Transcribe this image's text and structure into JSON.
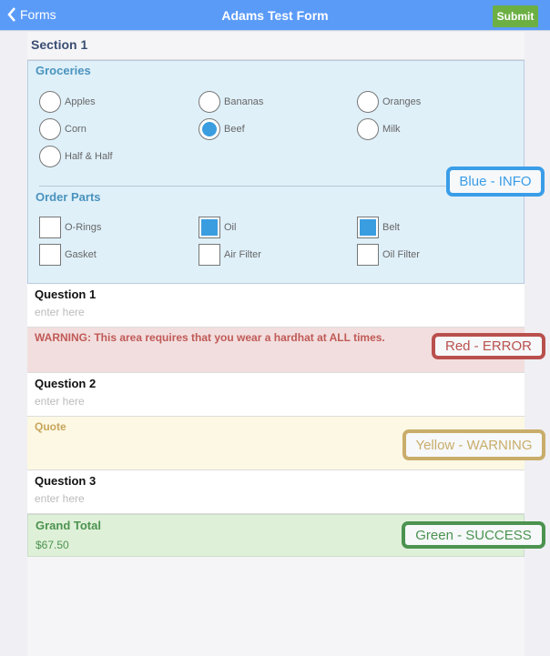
{
  "header": {
    "back_label": "Forms",
    "title": "Adams Test Form",
    "submit_label": "Submit"
  },
  "section": {
    "title": "Section 1"
  },
  "groceries": {
    "label": "Groceries",
    "options": [
      {
        "label": "Apples",
        "selected": false
      },
      {
        "label": "Bananas",
        "selected": false
      },
      {
        "label": "Oranges",
        "selected": false
      },
      {
        "label": "Corn",
        "selected": false
      },
      {
        "label": "Beef",
        "selected": true
      },
      {
        "label": "Milk",
        "selected": false
      },
      {
        "label": "Half & Half",
        "selected": false
      }
    ]
  },
  "parts": {
    "label": "Order Parts",
    "options": [
      {
        "label": "O-Rings",
        "checked": false
      },
      {
        "label": "Oil",
        "checked": true
      },
      {
        "label": "Belt",
        "checked": true
      },
      {
        "label": "Gasket",
        "checked": false
      },
      {
        "label": "Air Filter",
        "checked": false
      },
      {
        "label": "Oil Filter",
        "checked": false
      }
    ]
  },
  "q1": {
    "label": "Question 1",
    "placeholder": "enter here"
  },
  "error": {
    "text": "WARNING: This area requires that you wear a hardhat at ALL times."
  },
  "q2": {
    "label": "Question 2",
    "placeholder": "enter here"
  },
  "quote": {
    "label": "Quote"
  },
  "q3": {
    "label": "Question 3",
    "placeholder": "enter here"
  },
  "total": {
    "label": "Grand Total",
    "value": "$67.50"
  },
  "callouts": {
    "info": "Blue - INFO",
    "error": "Red - ERROR",
    "warning": "Yellow - WARNING",
    "success": "Green - SUCCESS"
  },
  "colors": {
    "header": "#5b9bf8",
    "submit": "#6cb044",
    "info": "#dff0f9",
    "error": "#f2dede",
    "warning": "#fcf8e3",
    "success": "#dff0d8"
  }
}
